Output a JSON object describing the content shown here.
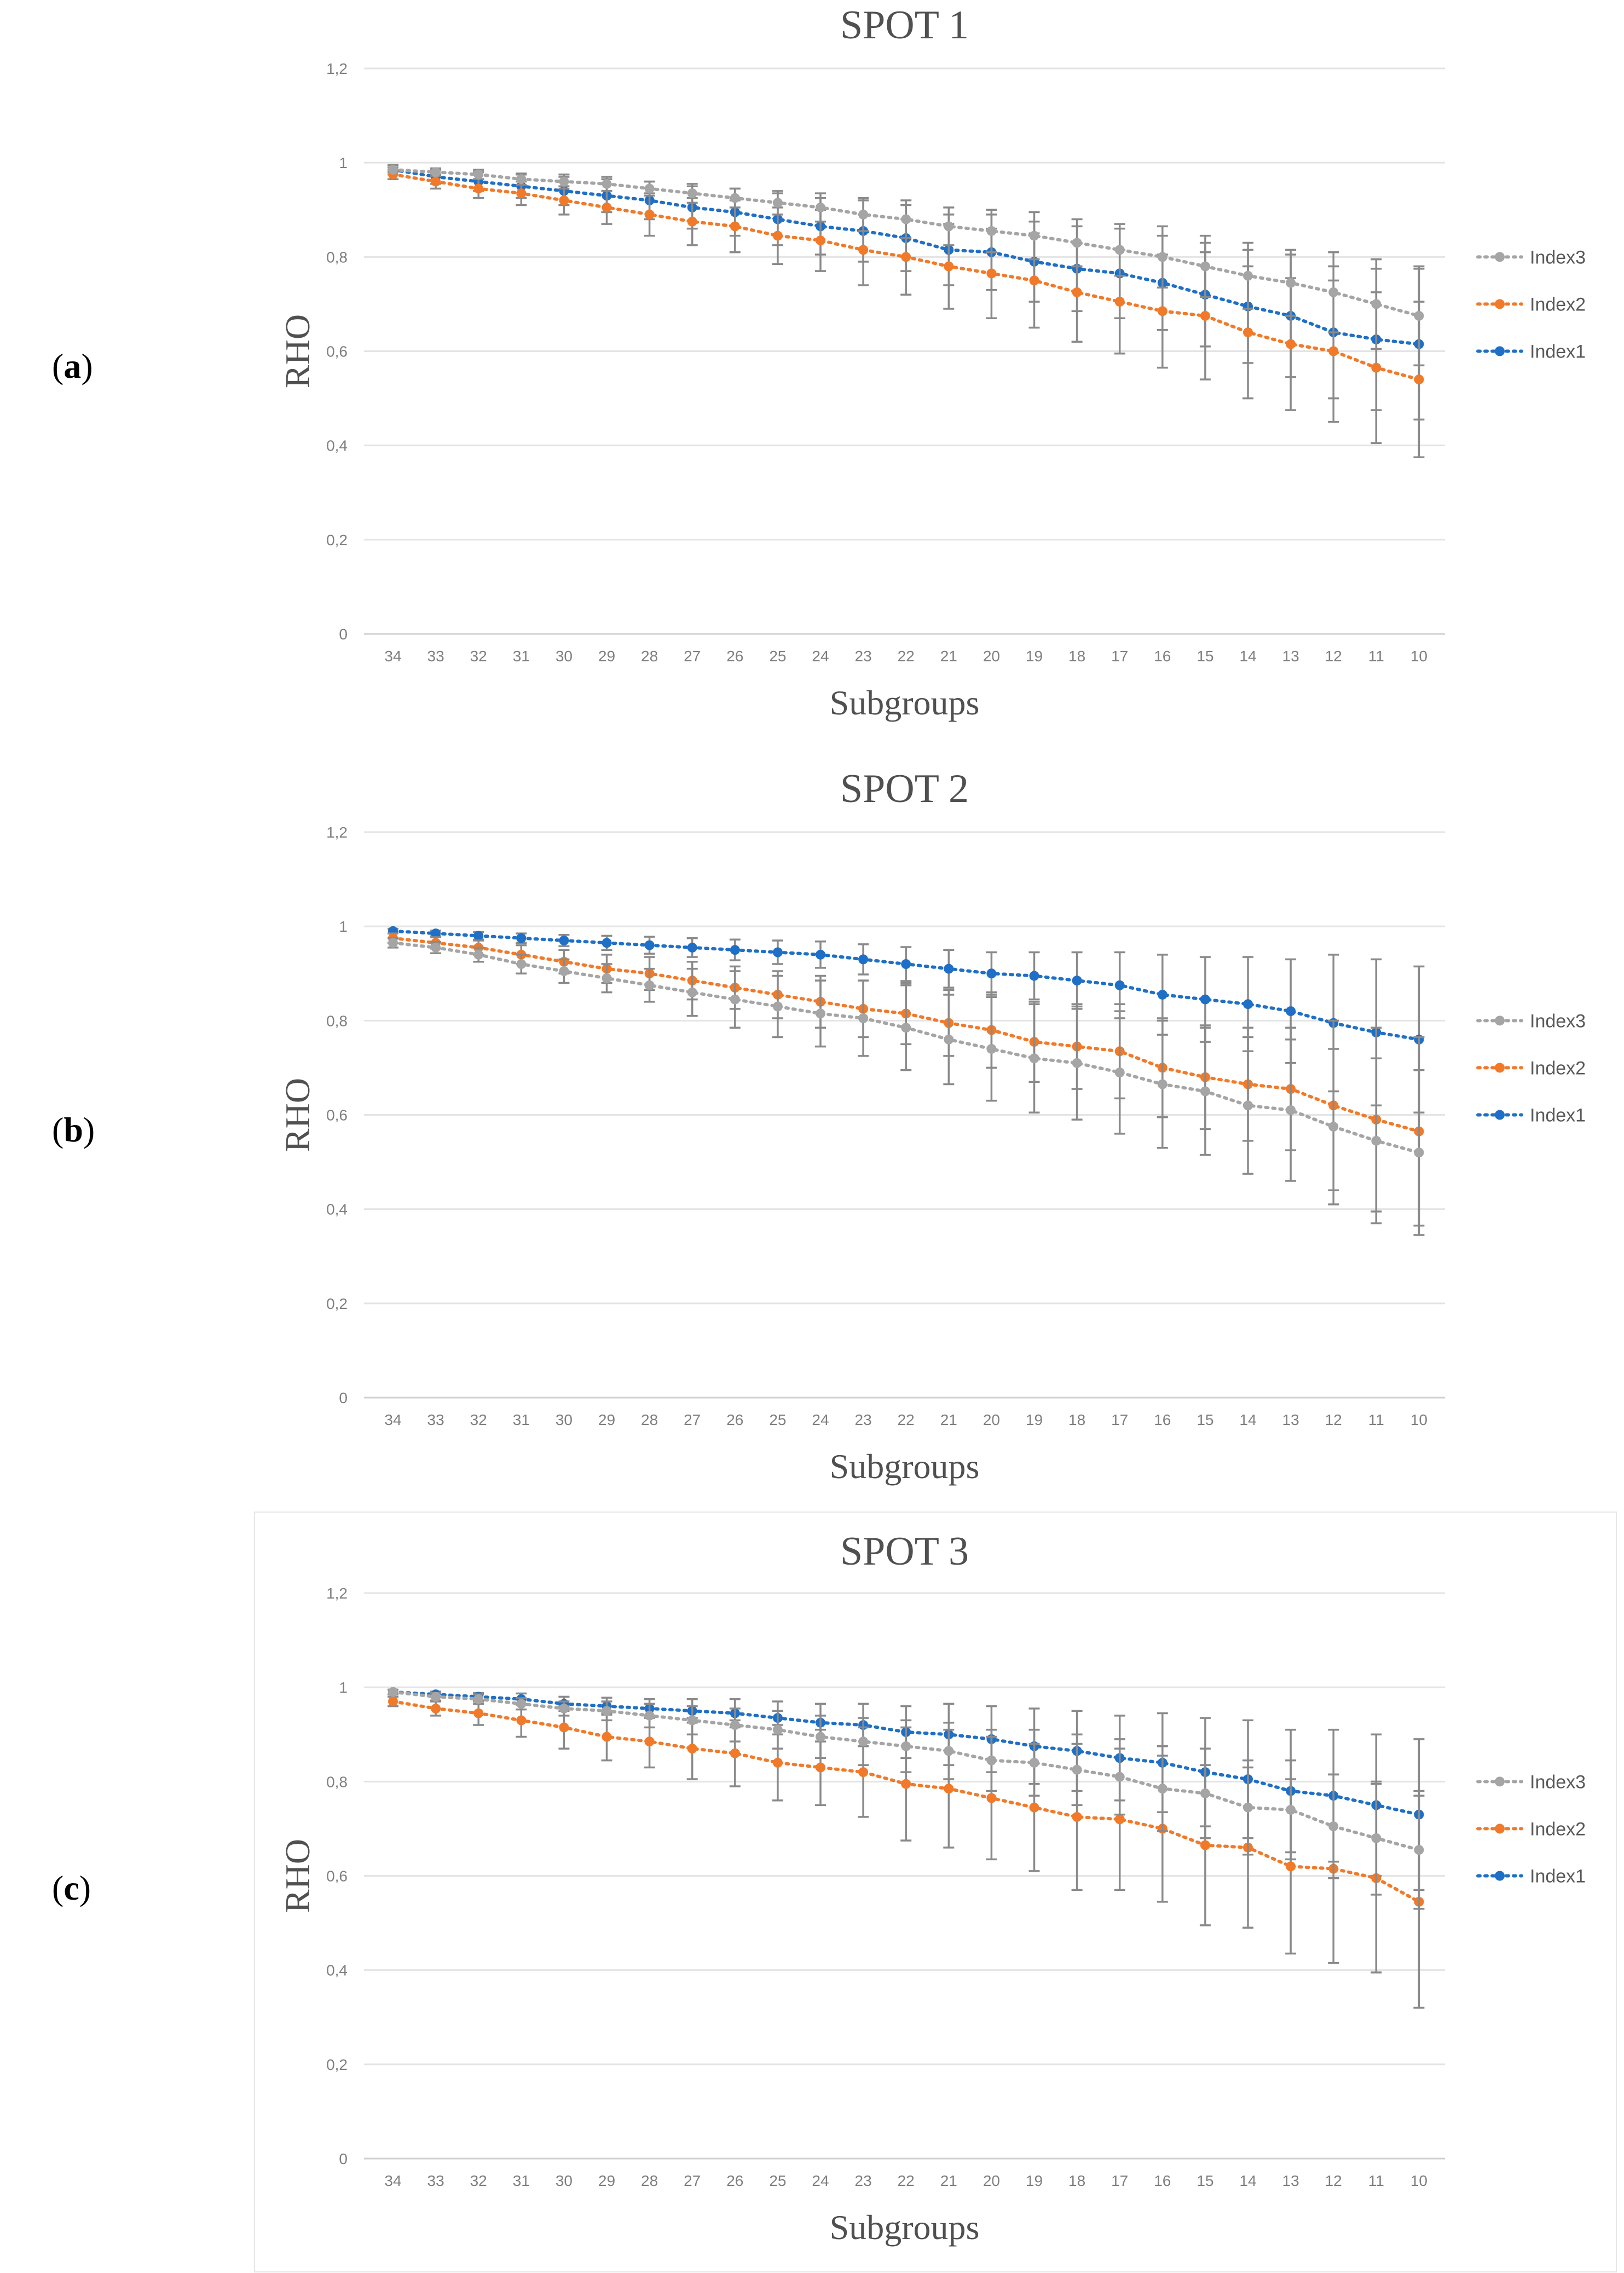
{
  "panel_labels": [
    "(a)",
    "(b)",
    "(c)"
  ],
  "legend_order": [
    "Index1",
    "Index2",
    "Index3"
  ],
  "colors": {
    "Index1": "#1f6fc6",
    "Index2": "#f07a2a",
    "Index3": "#a5a5a5"
  },
  "chart_data": [
    {
      "type": "line",
      "title": "SPOT 1",
      "xlabel": "Subgroups",
      "ylabel": "RHO",
      "ylim": [
        0,
        1.2
      ],
      "ytick_labels": [
        "0",
        "0,2",
        "0,4",
        "0,6",
        "0,8",
        "1",
        "1,2"
      ],
      "categories": [
        "34",
        "33",
        "32",
        "31",
        "30",
        "29",
        "28",
        "27",
        "26",
        "25",
        "24",
        "23",
        "22",
        "21",
        "20",
        "19",
        "18",
        "17",
        "16",
        "15",
        "14",
        "13",
        "12",
        "11",
        "10"
      ],
      "legend_position": "right",
      "series": [
        {
          "name": "Index1",
          "values": [
            0.985,
            0.97,
            0.96,
            0.95,
            0.94,
            0.93,
            0.92,
            0.905,
            0.895,
            0.88,
            0.865,
            0.855,
            0.84,
            0.815,
            0.81,
            0.79,
            0.775,
            0.765,
            0.745,
            0.72,
            0.695,
            0.675,
            0.64,
            0.625,
            0.615
          ],
          "errors": [
            0.01,
            0.015,
            0.02,
            0.025,
            0.03,
            0.035,
            0.04,
            0.045,
            0.05,
            0.055,
            0.06,
            0.065,
            0.07,
            0.075,
            0.08,
            0.085,
            0.09,
            0.095,
            0.1,
            0.11,
            0.12,
            0.13,
            0.14,
            0.15,
            0.16
          ]
        },
        {
          "name": "Index2",
          "values": [
            0.975,
            0.96,
            0.945,
            0.935,
            0.92,
            0.905,
            0.89,
            0.875,
            0.865,
            0.845,
            0.835,
            0.815,
            0.8,
            0.78,
            0.765,
            0.75,
            0.725,
            0.705,
            0.685,
            0.675,
            0.64,
            0.615,
            0.6,
            0.565,
            0.54
          ],
          "errors": [
            0.01,
            0.015,
            0.02,
            0.025,
            0.03,
            0.035,
            0.045,
            0.05,
            0.055,
            0.06,
            0.065,
            0.075,
            0.08,
            0.09,
            0.095,
            0.1,
            0.105,
            0.11,
            0.12,
            0.135,
            0.14,
            0.14,
            0.15,
            0.16,
            0.165
          ]
        },
        {
          "name": "Index3",
          "values": [
            0.985,
            0.98,
            0.975,
            0.965,
            0.96,
            0.955,
            0.945,
            0.935,
            0.925,
            0.915,
            0.905,
            0.89,
            0.88,
            0.865,
            0.855,
            0.845,
            0.83,
            0.815,
            0.8,
            0.78,
            0.76,
            0.745,
            0.725,
            0.7,
            0.675
          ],
          "errors": [
            0.005,
            0.008,
            0.01,
            0.012,
            0.015,
            0.015,
            0.015,
            0.02,
            0.02,
            0.025,
            0.03,
            0.035,
            0.04,
            0.04,
            0.045,
            0.05,
            0.05,
            0.055,
            0.065,
            0.065,
            0.07,
            0.07,
            0.085,
            0.095,
            0.105
          ]
        }
      ]
    },
    {
      "type": "line",
      "title": "SPOT 2",
      "xlabel": "Subgroups",
      "ylabel": "RHO",
      "ylim": [
        0,
        1.2
      ],
      "ytick_labels": [
        "0",
        "0,2",
        "0,4",
        "0,6",
        "0,8",
        "1",
        "1,2"
      ],
      "categories": [
        "34",
        "33",
        "32",
        "31",
        "30",
        "29",
        "28",
        "27",
        "26",
        "25",
        "24",
        "23",
        "22",
        "21",
        "20",
        "19",
        "18",
        "17",
        "16",
        "15",
        "14",
        "13",
        "12",
        "11",
        "10"
      ],
      "legend_position": "right",
      "series": [
        {
          "name": "Index1",
          "values": [
            0.99,
            0.985,
            0.98,
            0.975,
            0.97,
            0.965,
            0.96,
            0.955,
            0.95,
            0.945,
            0.94,
            0.93,
            0.92,
            0.91,
            0.9,
            0.895,
            0.885,
            0.875,
            0.855,
            0.845,
            0.835,
            0.82,
            0.795,
            0.775,
            0.76
          ],
          "errors": [
            0.005,
            0.006,
            0.008,
            0.01,
            0.012,
            0.015,
            0.018,
            0.02,
            0.022,
            0.025,
            0.028,
            0.032,
            0.036,
            0.04,
            0.045,
            0.05,
            0.06,
            0.07,
            0.085,
            0.09,
            0.1,
            0.11,
            0.145,
            0.155,
            0.155
          ]
        },
        {
          "name": "Index2",
          "values": [
            0.975,
            0.965,
            0.955,
            0.94,
            0.925,
            0.91,
            0.9,
            0.885,
            0.87,
            0.855,
            0.84,
            0.825,
            0.815,
            0.795,
            0.78,
            0.755,
            0.745,
            0.735,
            0.7,
            0.68,
            0.665,
            0.655,
            0.62,
            0.59,
            0.565
          ],
          "errors": [
            0.01,
            0.012,
            0.015,
            0.02,
            0.025,
            0.03,
            0.035,
            0.04,
            0.045,
            0.05,
            0.055,
            0.06,
            0.065,
            0.07,
            0.08,
            0.085,
            0.09,
            0.1,
            0.105,
            0.11,
            0.12,
            0.13,
            0.18,
            0.195,
            0.2
          ]
        },
        {
          "name": "Index3",
          "values": [
            0.965,
            0.955,
            0.94,
            0.92,
            0.905,
            0.89,
            0.875,
            0.86,
            0.845,
            0.83,
            0.815,
            0.805,
            0.785,
            0.76,
            0.74,
            0.72,
            0.71,
            0.69,
            0.665,
            0.65,
            0.62,
            0.61,
            0.575,
            0.545,
            0.52
          ],
          "errors": [
            0.01,
            0.012,
            0.015,
            0.02,
            0.025,
            0.03,
            0.035,
            0.05,
            0.06,
            0.065,
            0.07,
            0.08,
            0.09,
            0.095,
            0.11,
            0.115,
            0.12,
            0.13,
            0.135,
            0.135,
            0.145,
            0.15,
            0.165,
            0.175,
            0.175
          ]
        }
      ]
    },
    {
      "type": "line",
      "title": "SPOT 3",
      "xlabel": "Subgroups",
      "ylabel": "RHO",
      "ylim": [
        0,
        1.2
      ],
      "ytick_labels": [
        "0",
        "0,2",
        "0,4",
        "0,6",
        "0,8",
        "1",
        "1,2"
      ],
      "categories": [
        "34",
        "33",
        "32",
        "31",
        "30",
        "29",
        "28",
        "27",
        "26",
        "25",
        "24",
        "23",
        "22",
        "21",
        "20",
        "19",
        "18",
        "17",
        "16",
        "15",
        "14",
        "13",
        "12",
        "11",
        "10"
      ],
      "legend_position": "right",
      "series": [
        {
          "name": "Index1",
          "values": [
            0.99,
            0.985,
            0.98,
            0.975,
            0.965,
            0.96,
            0.955,
            0.95,
            0.945,
            0.935,
            0.925,
            0.92,
            0.905,
            0.9,
            0.89,
            0.875,
            0.865,
            0.85,
            0.84,
            0.82,
            0.805,
            0.78,
            0.77,
            0.75,
            0.73
          ],
          "errors": [
            0.005,
            0.006,
            0.008,
            0.012,
            0.015,
            0.018,
            0.02,
            0.025,
            0.03,
            0.035,
            0.04,
            0.045,
            0.055,
            0.065,
            0.07,
            0.08,
            0.085,
            0.09,
            0.105,
            0.115,
            0.125,
            0.13,
            0.14,
            0.15,
            0.16
          ]
        },
        {
          "name": "Index2",
          "values": [
            0.97,
            0.955,
            0.945,
            0.93,
            0.915,
            0.895,
            0.885,
            0.87,
            0.86,
            0.84,
            0.83,
            0.82,
            0.795,
            0.785,
            0.765,
            0.745,
            0.725,
            0.72,
            0.7,
            0.665,
            0.66,
            0.62,
            0.615,
            0.595,
            0.545
          ],
          "errors": [
            0.01,
            0.015,
            0.025,
            0.035,
            0.045,
            0.05,
            0.055,
            0.065,
            0.07,
            0.08,
            0.08,
            0.095,
            0.12,
            0.125,
            0.13,
            0.135,
            0.155,
            0.15,
            0.155,
            0.17,
            0.17,
            0.185,
            0.2,
            0.2,
            0.225
          ]
        },
        {
          "name": "Index3",
          "values": [
            0.99,
            0.98,
            0.975,
            0.965,
            0.955,
            0.95,
            0.94,
            0.93,
            0.92,
            0.91,
            0.895,
            0.885,
            0.875,
            0.865,
            0.845,
            0.84,
            0.825,
            0.81,
            0.785,
            0.775,
            0.745,
            0.74,
            0.705,
            0.68,
            0.655
          ],
          "errors": [
            0.005,
            0.008,
            0.01,
            0.012,
            0.015,
            0.02,
            0.025,
            0.03,
            0.035,
            0.04,
            0.045,
            0.05,
            0.055,
            0.06,
            0.065,
            0.07,
            0.075,
            0.08,
            0.09,
            0.095,
            0.1,
            0.105,
            0.11,
            0.12,
            0.125
          ]
        }
      ]
    }
  ]
}
